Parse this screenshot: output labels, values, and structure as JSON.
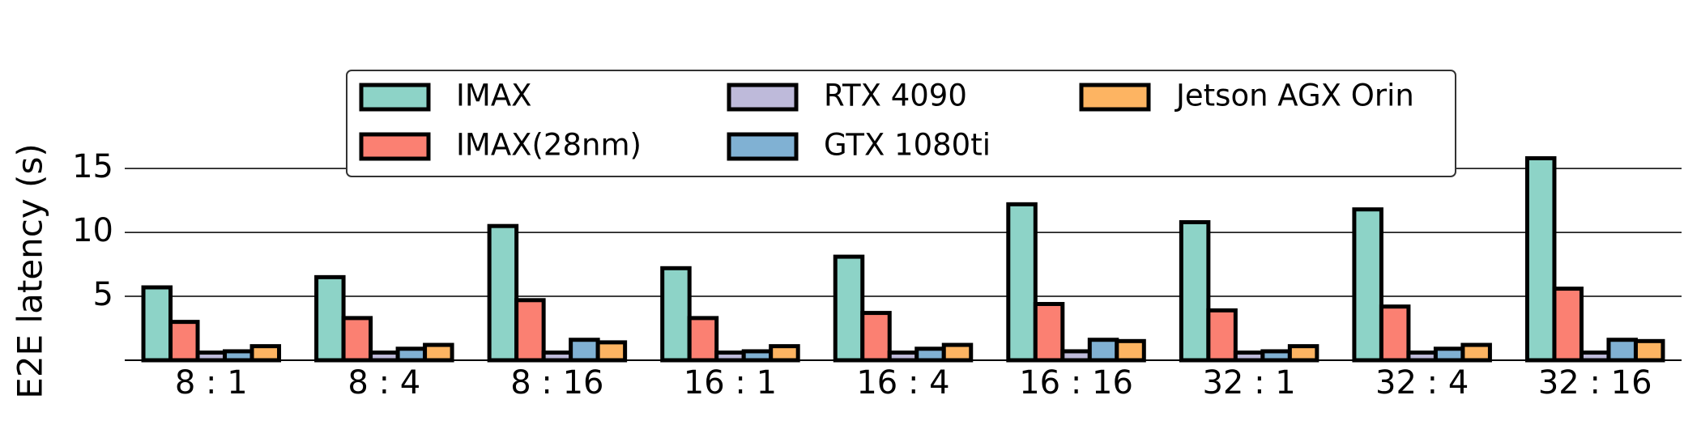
{
  "chart_data": {
    "type": "bar",
    "y_label": "E2E latency (s)",
    "categories": [
      "8 : 1",
      "8 : 4",
      "8 : 16",
      "16 : 1",
      "16 : 4",
      "16 : 16",
      "32 : 1",
      "32 : 4",
      "32 : 16"
    ],
    "series": [
      {
        "name": "IMAX",
        "color": "#8dd3c7",
        "values": [
          5.7,
          6.5,
          10.5,
          7.2,
          8.1,
          12.2,
          10.8,
          11.8,
          15.8
        ]
      },
      {
        "name": "IMAX(28nm)",
        "color": "#fb8072",
        "values": [
          3.0,
          3.3,
          4.7,
          3.3,
          3.7,
          4.4,
          3.9,
          4.2,
          5.6
        ]
      },
      {
        "name": "RTX 4090",
        "color": "#bebada",
        "values": [
          0.6,
          0.6,
          0.6,
          0.6,
          0.6,
          0.7,
          0.6,
          0.6,
          0.6
        ]
      },
      {
        "name": "GTX 1080ti",
        "color": "#80b1d3",
        "values": [
          0.7,
          0.9,
          1.6,
          0.7,
          0.9,
          1.6,
          0.7,
          0.9,
          1.6
        ]
      },
      {
        "name": "Jetson AGX Orin",
        "color": "#fdb462",
        "values": [
          1.1,
          1.2,
          1.4,
          1.1,
          1.2,
          1.5,
          1.1,
          1.2,
          1.5
        ]
      }
    ],
    "ylim": [
      0,
      24
    ],
    "yticks": [
      5,
      10,
      15
    ],
    "grid": true,
    "legend": "top"
  }
}
